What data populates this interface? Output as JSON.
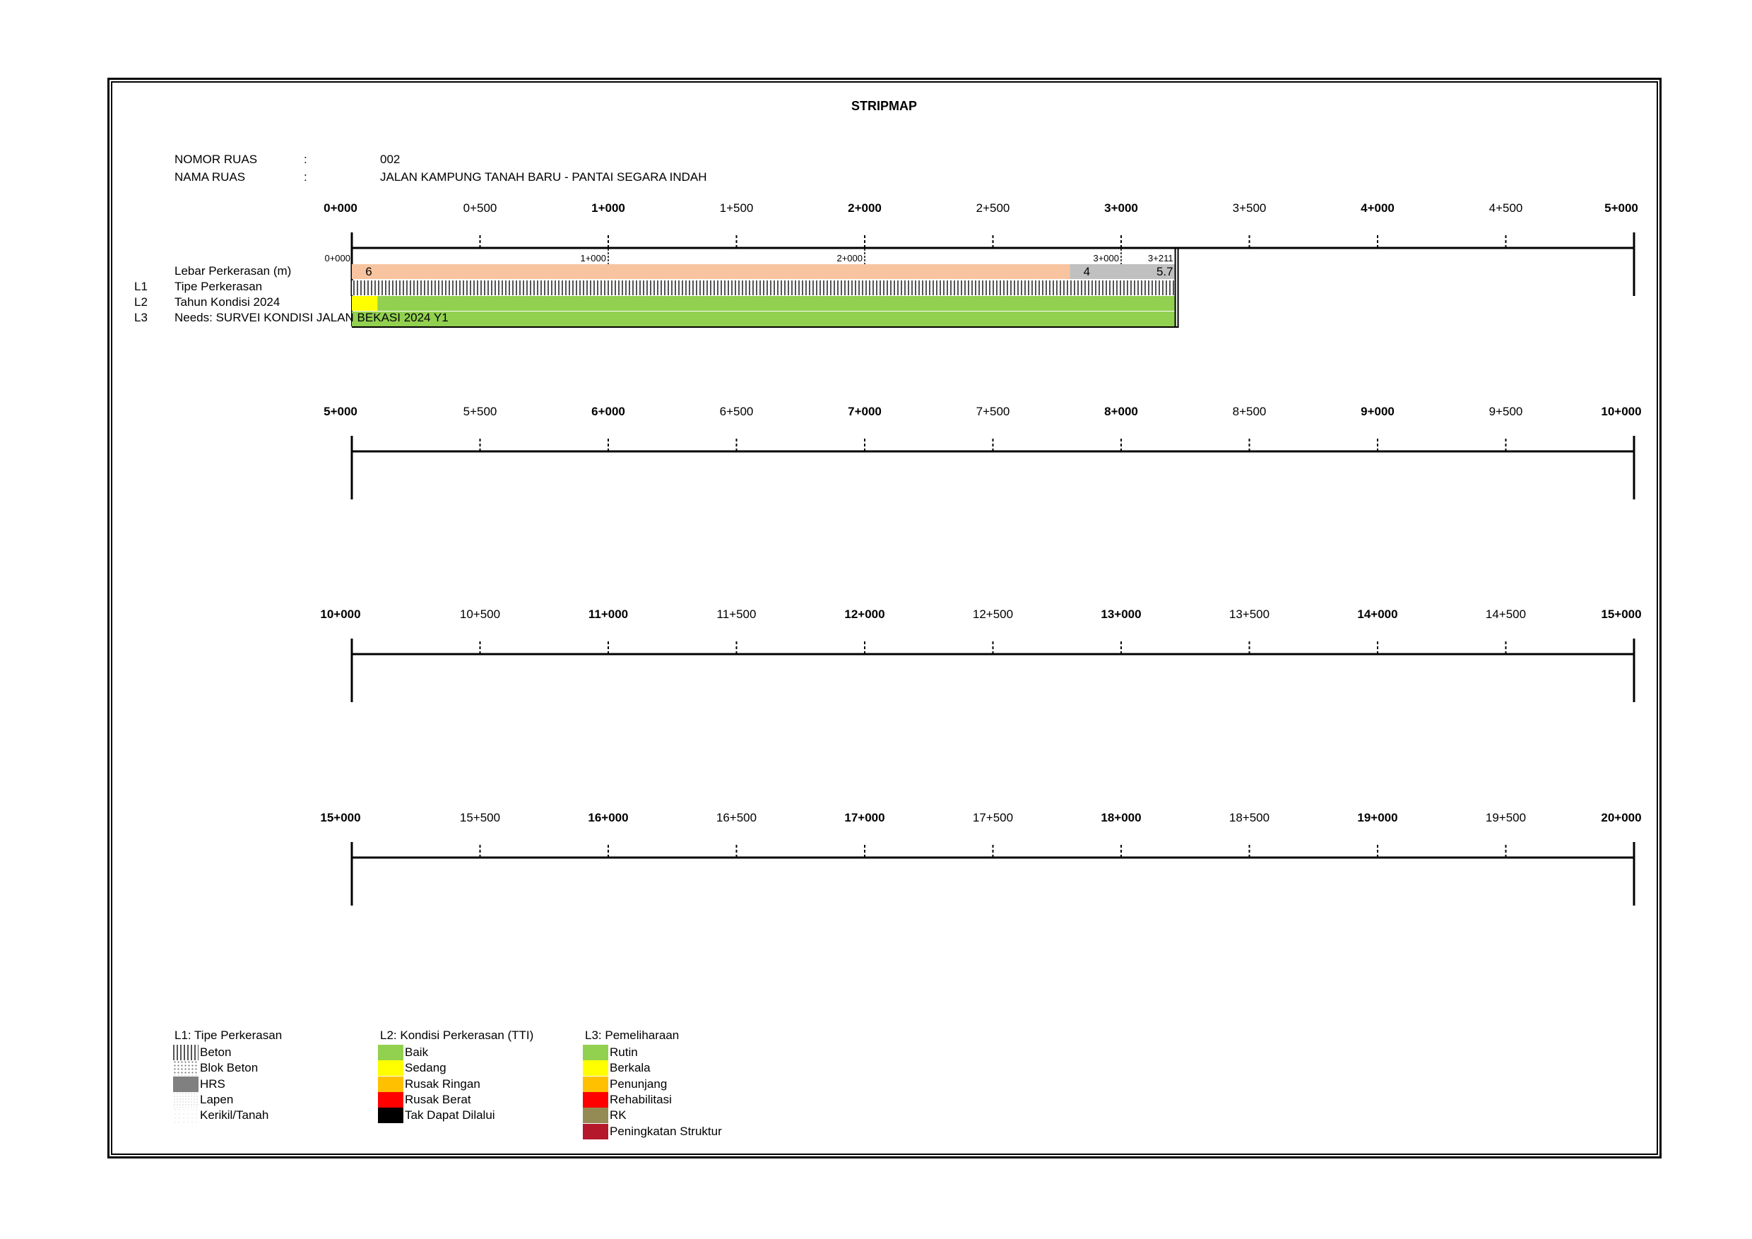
{
  "title": "STRIPMAP",
  "info": {
    "nomor_label": "NOMOR RUAS",
    "nama_label": "NAMA RUAS",
    "colon": ":",
    "nomor_value": "002",
    "nama_value": "JALAN KAMPUNG TANAH BARU - PANTAI SEGARA INDAH"
  },
  "rows": [
    {
      "labels": [
        "0+000",
        "0+500",
        "1+000",
        "1+500",
        "2+000",
        "2+500",
        "3+000",
        "3+500",
        "4+000",
        "4+500",
        "5+000"
      ]
    },
    {
      "labels": [
        "5+000",
        "5+500",
        "6+000",
        "6+500",
        "7+000",
        "7+500",
        "8+000",
        "8+500",
        "9+000",
        "9+500",
        "10+000"
      ]
    },
    {
      "labels": [
        "10+000",
        "10+500",
        "11+000",
        "11+500",
        "12+000",
        "12+500",
        "13+000",
        "13+500",
        "14+000",
        "14+500",
        "15+000"
      ]
    },
    {
      "labels": [
        "15+000",
        "15+500",
        "16+000",
        "16+500",
        "17+000",
        "17+500",
        "18+000",
        "18+500",
        "19+000",
        "19+500",
        "20+000"
      ]
    }
  ],
  "road": {
    "start_km": 0,
    "end_km": 3.211,
    "markers": [
      "0+000",
      "1+000",
      "2+000",
      "3+000",
      "3+211"
    ],
    "layers": {
      "width_label": "Lebar Perkerasan (m)",
      "l1_code": "L1",
      "l1_label": "Tipe Perkerasan",
      "l2_code": "L2",
      "l2_label": "Tahun Kondisi 2024",
      "l3_code": "L3",
      "l3_label": "Needs: SURVEI KONDISI JALAN BEKASI 2024 Y1"
    },
    "width_segments": [
      {
        "from": 0,
        "to": 2.8,
        "value": "6",
        "color": "#f8c4a0"
      },
      {
        "from": 2.8,
        "to": 3.211,
        "value": "4",
        "value2": "5.7",
        "color": "#c0c0c0"
      }
    ],
    "l2_segments": [
      {
        "from": 0,
        "to": 0.1,
        "color": "#ffff00"
      },
      {
        "from": 0.1,
        "to": 3.211,
        "color": "#92d050"
      }
    ],
    "l3_segments": [
      {
        "from": 0,
        "to": 3.211,
        "color": "#92d050"
      }
    ]
  },
  "legend": {
    "l1": {
      "title": "L1: Tipe Perkerasan",
      "items": [
        {
          "label": "Beton",
          "pattern": "beton"
        },
        {
          "label": "Blok Beton",
          "pattern": "blok"
        },
        {
          "label": "HRS",
          "pattern": "hrs"
        },
        {
          "label": "Lapen",
          "pattern": "lapen"
        },
        {
          "label": "Kerikil/Tanah",
          "pattern": "kerikil"
        }
      ]
    },
    "l2": {
      "title": "L2: Kondisi Perkerasan (TTI)",
      "items": [
        {
          "label": "Baik",
          "color": "#92d050"
        },
        {
          "label": "Sedang",
          "color": "#ffff00"
        },
        {
          "label": "Rusak Ringan",
          "color": "#ffc000"
        },
        {
          "label": "Rusak Berat",
          "color": "#ff0000"
        },
        {
          "label": "Tak Dapat Dilalui",
          "color": "#000000"
        }
      ]
    },
    "l3": {
      "title": "L3: Pemeliharaan",
      "items": [
        {
          "label": "Rutin",
          "color": "#92d050"
        },
        {
          "label": "Berkala",
          "color": "#ffff00"
        },
        {
          "label": "Penunjang",
          "color": "#ffc000"
        },
        {
          "label": "Rehabilitasi",
          "color": "#ff0000"
        },
        {
          "label": "RK",
          "color": "#948a54"
        },
        {
          "label": "Peningkatan Struktur",
          "color": "#b4182a"
        }
      ]
    }
  }
}
